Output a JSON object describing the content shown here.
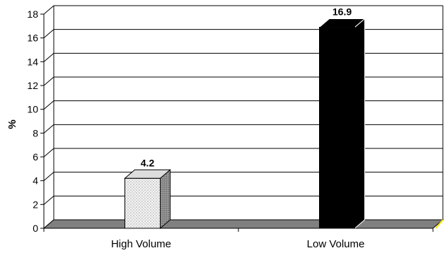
{
  "chart_data": {
    "type": "bar",
    "title": "",
    "xlabel": "",
    "ylabel": "%",
    "ylim": [
      0,
      18
    ],
    "yticks": [
      0,
      2,
      4,
      6,
      8,
      10,
      12,
      14,
      16,
      18
    ],
    "grid": true,
    "style": "3d",
    "categories": [
      "High Volume",
      "Low Volume"
    ],
    "values": [
      4.2,
      16.9
    ],
    "data_labels": [
      "4.2",
      "16.9"
    ],
    "colors": {
      "high_volume_bar": "#f0f0f0",
      "low_volume_bar": "#000000",
      "floor": "#808080",
      "gridline": "#000000"
    }
  }
}
